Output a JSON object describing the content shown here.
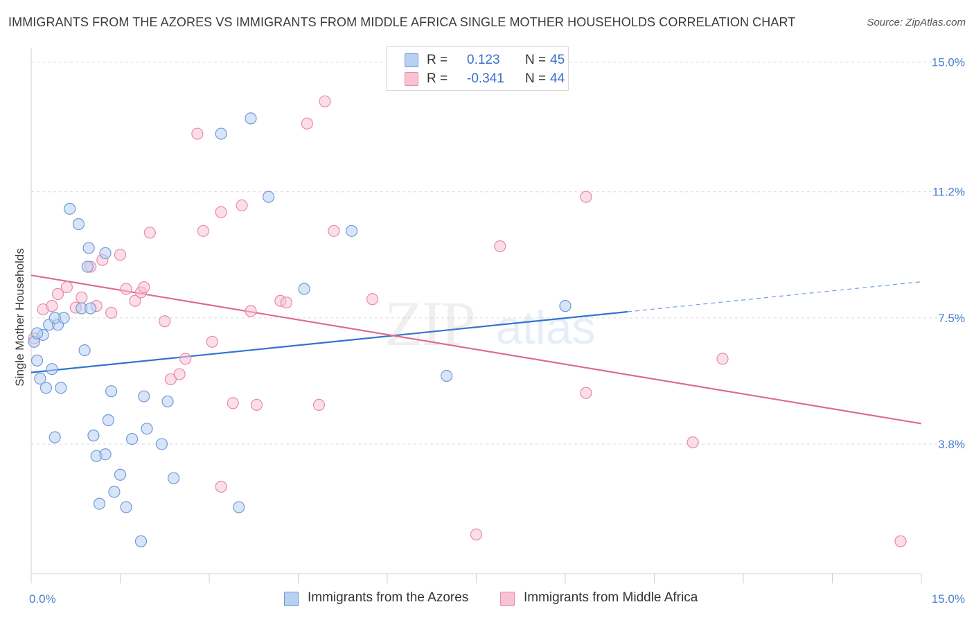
{
  "header": {
    "title": "IMMIGRANTS FROM THE AZORES VS IMMIGRANTS FROM MIDDLE AFRICA SINGLE MOTHER HOUSEHOLDS CORRELATION CHART",
    "source": "Source: ZipAtlas.com"
  },
  "legend_top": {
    "rows": [
      {
        "r_label": "R =",
        "r_value": "0.123",
        "n_label": "N =",
        "n_value": "45"
      },
      {
        "r_label": "R =",
        "r_value": "-0.341",
        "n_label": "N =",
        "n_value": "44"
      }
    ]
  },
  "legend_bottom": {
    "items": [
      "Immigrants from the Azores",
      "Immigrants from Middle Africa"
    ]
  },
  "colors": {
    "blue_fill": "#b8d0f2",
    "blue_stroke": "#6f9ad8",
    "blue_line": "#3373d0",
    "pink_fill": "#f7c3d3",
    "pink_stroke": "#e98aa8",
    "pink_line": "#e06a94",
    "grid": "#d9d9d9",
    "tick_label": "#4a7fd0"
  },
  "chart_data": {
    "type": "scatter",
    "title": "IMMIGRANTS FROM THE AZORES VS IMMIGRANTS FROM MIDDLE AFRICA SINGLE MOTHER HOUSEHOLDS CORRELATION CHART",
    "xlabel": "",
    "ylabel": "Single Mother Households",
    "xlim": [
      0,
      15
    ],
    "ylim": [
      0,
      15.4
    ],
    "x_tick_labels": [
      "0.0%",
      "15.0%"
    ],
    "y_ticks": [
      3.8,
      7.5,
      11.2,
      15.0
    ],
    "y_tick_labels": [
      "3.8%",
      "7.5%",
      "11.2%",
      "15.0%"
    ],
    "grid": true,
    "legend_position": "top-center",
    "watermark": "ZIPatlas",
    "series": [
      {
        "name": "Immigrants from the Azores",
        "color": "#6f9ad8",
        "r": 0.123,
        "n": 45,
        "trend": {
          "x": [
            0,
            10.05
          ],
          "y": [
            5.9,
            7.68
          ],
          "dashed_to": [
            15,
            8.56
          ]
        },
        "points": [
          [
            0.05,
            6.8
          ],
          [
            0.1,
            6.25
          ],
          [
            0.15,
            5.72
          ],
          [
            0.2,
            7.0
          ],
          [
            0.25,
            5.45
          ],
          [
            0.3,
            7.3
          ],
          [
            0.35,
            6.0
          ],
          [
            0.4,
            4.0
          ],
          [
            0.45,
            7.3
          ],
          [
            0.5,
            5.45
          ],
          [
            0.55,
            7.5
          ],
          [
            0.65,
            10.7
          ],
          [
            0.8,
            10.25
          ],
          [
            0.85,
            7.78
          ],
          [
            0.9,
            6.55
          ],
          [
            0.95,
            9.0
          ],
          [
            0.97,
            9.55
          ],
          [
            1.0,
            7.78
          ],
          [
            1.05,
            4.05
          ],
          [
            1.1,
            3.45
          ],
          [
            1.15,
            2.05
          ],
          [
            1.25,
            3.5
          ],
          [
            1.3,
            4.5
          ],
          [
            1.4,
            2.4
          ],
          [
            1.5,
            2.9
          ],
          [
            1.6,
            1.95
          ],
          [
            1.7,
            3.95
          ],
          [
            1.85,
            0.95
          ],
          [
            1.9,
            5.2
          ],
          [
            1.95,
            4.25
          ],
          [
            2.2,
            3.8
          ],
          [
            2.3,
            5.05
          ],
          [
            2.4,
            2.8
          ],
          [
            1.25,
            9.4
          ],
          [
            1.35,
            5.35
          ],
          [
            3.2,
            12.9
          ],
          [
            3.5,
            1.95
          ],
          [
            3.7,
            13.35
          ],
          [
            4.0,
            11.05
          ],
          [
            4.6,
            8.35
          ],
          [
            5.4,
            10.05
          ],
          [
            7.0,
            5.8
          ],
          [
            9.0,
            7.85
          ],
          [
            0.1,
            7.05
          ],
          [
            0.4,
            7.5
          ]
        ]
      },
      {
        "name": "Immigrants from Middle Africa",
        "color": "#e98aa8",
        "r": -0.341,
        "n": 44,
        "trend": {
          "x": [
            0,
            15
          ],
          "y": [
            8.75,
            4.4
          ]
        },
        "points": [
          [
            0.05,
            6.9
          ],
          [
            0.2,
            7.75
          ],
          [
            0.35,
            7.85
          ],
          [
            0.45,
            8.2
          ],
          [
            0.6,
            8.4
          ],
          [
            0.75,
            7.8
          ],
          [
            0.85,
            8.1
          ],
          [
            1.0,
            9.0
          ],
          [
            1.1,
            7.85
          ],
          [
            1.2,
            9.2
          ],
          [
            1.35,
            7.65
          ],
          [
            1.5,
            9.35
          ],
          [
            1.6,
            8.35
          ],
          [
            1.75,
            8.0
          ],
          [
            1.85,
            8.25
          ],
          [
            1.9,
            8.4
          ],
          [
            2.0,
            10.0
          ],
          [
            2.25,
            7.4
          ],
          [
            2.35,
            5.7
          ],
          [
            2.5,
            5.85
          ],
          [
            2.6,
            6.3
          ],
          [
            2.8,
            12.9
          ],
          [
            2.9,
            10.05
          ],
          [
            3.05,
            6.8
          ],
          [
            3.2,
            10.6
          ],
          [
            3.2,
            2.55
          ],
          [
            3.4,
            5.0
          ],
          [
            3.55,
            10.8
          ],
          [
            3.7,
            7.7
          ],
          [
            3.8,
            4.95
          ],
          [
            4.2,
            8.0
          ],
          [
            4.3,
            7.95
          ],
          [
            4.65,
            13.2
          ],
          [
            4.85,
            4.95
          ],
          [
            4.95,
            13.85
          ],
          [
            5.1,
            10.05
          ],
          [
            5.75,
            8.05
          ],
          [
            7.5,
            1.15
          ],
          [
            7.9,
            9.6
          ],
          [
            9.35,
            11.05
          ],
          [
            9.35,
            5.3
          ],
          [
            11.15,
            3.85
          ],
          [
            11.65,
            6.3
          ],
          [
            14.65,
            0.95
          ]
        ]
      }
    ]
  }
}
